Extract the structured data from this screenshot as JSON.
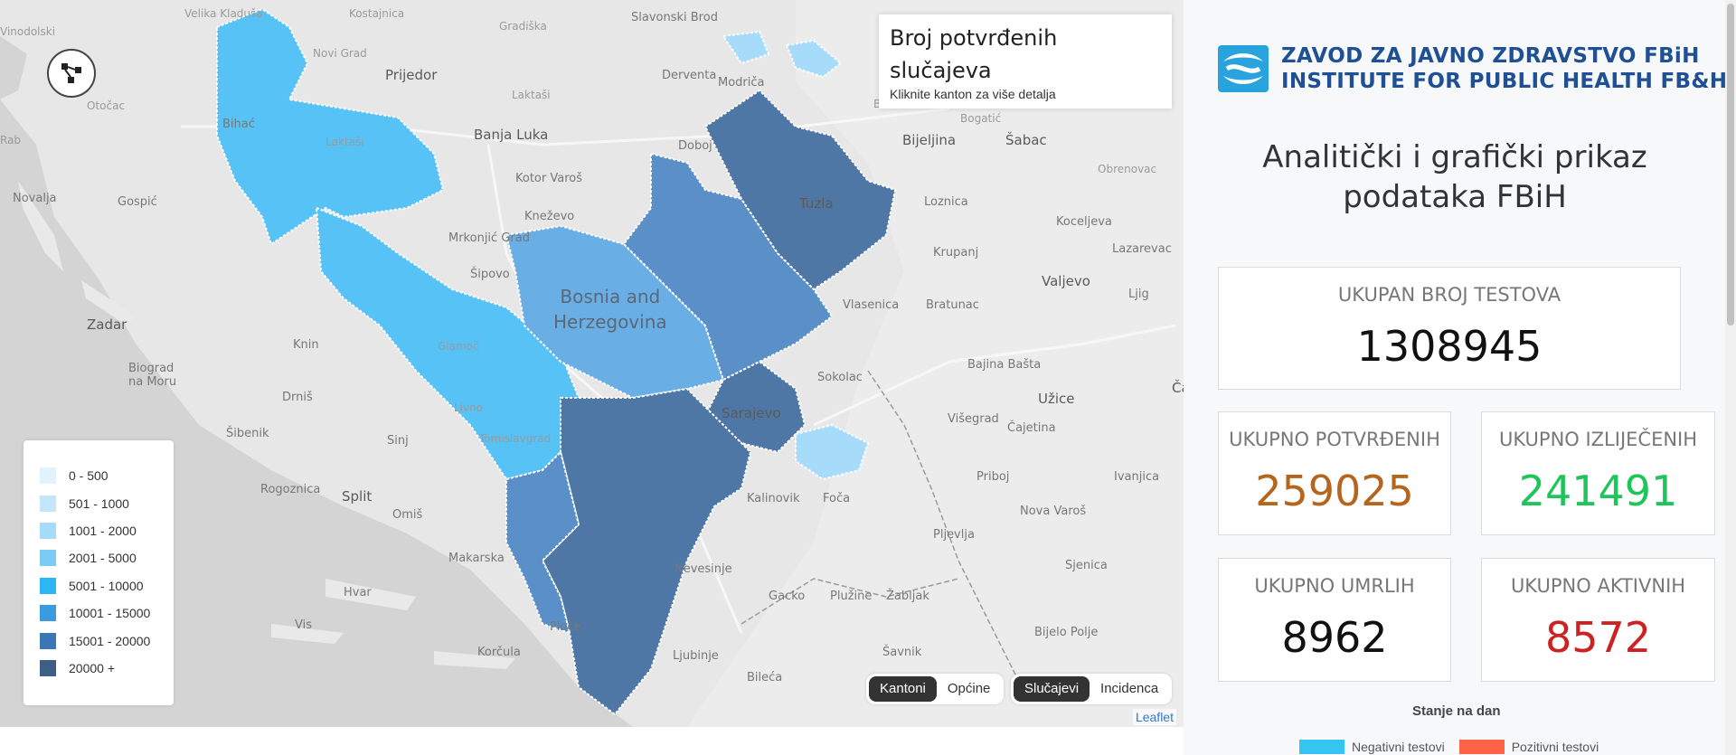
{
  "map": {
    "places": {
      "prijedor": "Prijedor",
      "banja_luka": "Banja Luka",
      "derventa": "Derventa",
      "modrica": "Modriča",
      "doboj": "Doboj",
      "bijeljina": "Bijeljina",
      "sabac": "Šabac",
      "tuzla": "Tuzla",
      "bihac": "Bihać",
      "novalja": "Novalja",
      "gospic": "Gospić",
      "zadar": "Zadar",
      "knin": "Knin",
      "biograd": "Biograd\nna Moru",
      "drnis": "Drniš",
      "sibenik": "Šibenik",
      "sinj": "Sinj",
      "split": "Split",
      "omis": "Omiš",
      "makarska": "Makarska",
      "hvar": "Hvar",
      "vis": "Vis",
      "korcula": "Korčula",
      "ploce": "Ploče",
      "ljubinje": "Ljubinje",
      "bileca": "Bileća",
      "savnik": "Šavnik",
      "gacko": "Gacko",
      "pluzine": "Plužine",
      "zabljak": "Žabljak",
      "pljevlja": "Pljevlja",
      "bijelo_polje": "Bijelo Polje",
      "sjenica": "Sjenica",
      "nova_varos": "Nova Varoš",
      "cajetina": "Čajetina",
      "uzice": "Užice",
      "cacak": "Čačak",
      "valjevo": "Valjevo",
      "bajina_basta": "Bajina Bašta",
      "visegrad": "Višegrad",
      "sokolac": "Sokolac",
      "foca": "Foča",
      "kalinovik": "Kalinovik",
      "nevesinje": "Nevesinje",
      "sarajevo": "Sarajevo",
      "bratunac": "Bratunac",
      "vlasenica": "Vlasenica",
      "loznica": "Loznica",
      "krupanj": "Krupanj",
      "koceljeva": "Koceljeva",
      "lazarevac": "Lazarevac",
      "ljig": "Ljig",
      "obrenovac": "Obrenovac",
      "slavonski_brod": "Slavonski Brod",
      "gradiska": "Gradiška",
      "kostajnica": "Kostajnica",
      "velika_kladusa": "Velika Kladuša",
      "novi_grad": "Novi Grad",
      "laktasi": "Laktaši",
      "kotor_varos": "Kotor Varoš",
      "knezevo": "Kneževo",
      "mrkonjic": "Mrkonjić Grad",
      "sipovo": "Šipovo",
      "glamoc": "Glamoč",
      "livno": "Livno",
      "tomislavgrad": "Tomislavgrad",
      "otocac": "Otočac",
      "rab": "Rab",
      "vinodol": "Vinodolski",
      "rogoznica": "Rogoznica",
      "country": "Bosnia and\nHerzegovina",
      "priboj": "Priboj",
      "ivanjica": "Ivanjica",
      "brcko": "Brčko",
      "bogatic": "Bogatić"
    },
    "legend": [
      {
        "label": "0 - 500",
        "color": "#e1f2fd"
      },
      {
        "label": "501 - 1000",
        "color": "#c3e6fb"
      },
      {
        "label": "1001 - 2000",
        "color": "#a6dbfa"
      },
      {
        "label": "2001 - 5000",
        "color": "#7ccbf5"
      },
      {
        "label": "5001 - 10000",
        "color": "#2cb6f5"
      },
      {
        "label": "10001 - 15000",
        "color": "#3a9bdf"
      },
      {
        "label": "15001 - 20000",
        "color": "#3a78b5"
      },
      {
        "label": "20000 +",
        "color": "#3d5f86"
      }
    ],
    "info": {
      "title": "Broj potvrđenih slučajeva",
      "subtitle": "Kliknite kanton za više detalja"
    },
    "toggle_level": {
      "kantoni": "Kantoni",
      "opcine": "Općine"
    },
    "toggle_metric": {
      "slucajevi": "Slučajevi",
      "incidenca": "Incidenca"
    },
    "attribution": "Leaflet"
  },
  "panel": {
    "logo_line1": "ZAVOD ZA JAVNO ZDRAVSTVO FBiH",
    "logo_line2": "INSTITUTE FOR PUBLIC HEALTH FB&H",
    "logo_color": "#1f4f94",
    "title": "Analitički i grafički prikaz podataka FBiH",
    "cards": {
      "tests": {
        "label": "UKUPAN BROJ TESTOVA",
        "value": "1308945",
        "color": "#111111"
      },
      "confirmed": {
        "label": "UKUPNO POTVRĐENIH",
        "value": "259025",
        "color": "#b5651d"
      },
      "recovered": {
        "label": "UKUPNO IZLIJEČENIH",
        "value": "241491",
        "color": "#1ec55a"
      },
      "deaths": {
        "label": "UKUPNO UMRLIH",
        "value": "8962",
        "color": "#111111"
      },
      "active": {
        "label": "UKUPNO AKTIVNIH",
        "value": "8572",
        "color": "#cc2222"
      }
    },
    "stanje": "Stanje na dan",
    "chart_legend": [
      {
        "label": "Negativni testovi",
        "color": "#36c5f0"
      },
      {
        "label": "Pozitivni testovi",
        "color": "#ff6347"
      }
    ]
  }
}
